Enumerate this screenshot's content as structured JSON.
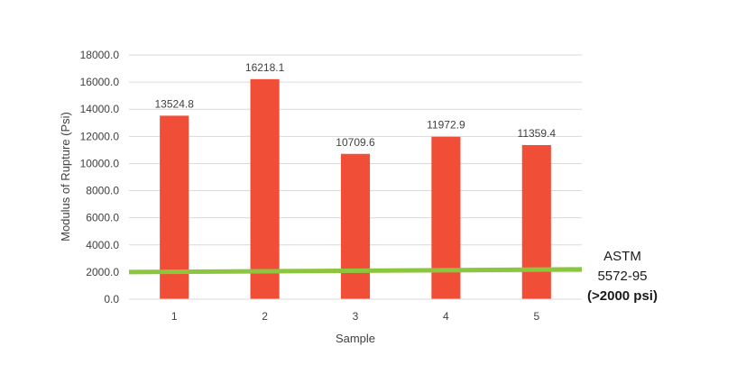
{
  "chart_data": {
    "type": "bar",
    "title": "",
    "xlabel": "Sample",
    "ylabel": "Modulus of Rupture (Psi)",
    "categories": [
      "1",
      "2",
      "3",
      "4",
      "5"
    ],
    "values": [
      13524.8,
      16218.1,
      10709.6,
      11972.9,
      11359.4
    ],
    "data_labels": [
      "13524.8",
      "16218.1",
      "10709.6",
      "11972.9",
      "11359.4"
    ],
    "ylim": [
      0,
      18000
    ],
    "y_ticks": [
      "0.0",
      "2000.0",
      "4000.0",
      "6000.0",
      "8000.0",
      "10000.0",
      "12000.0",
      "14000.0",
      "16000.0",
      "18000.0"
    ],
    "grid": true,
    "legend": "none",
    "bar_color": "#f04e37",
    "reference_line": {
      "value_start": 2000,
      "value_end": 2200,
      "color": "#8cc63f",
      "label_lines": [
        "ASTM",
        "5572-95"
      ],
      "label_bold": "(>2000 psi)"
    }
  }
}
